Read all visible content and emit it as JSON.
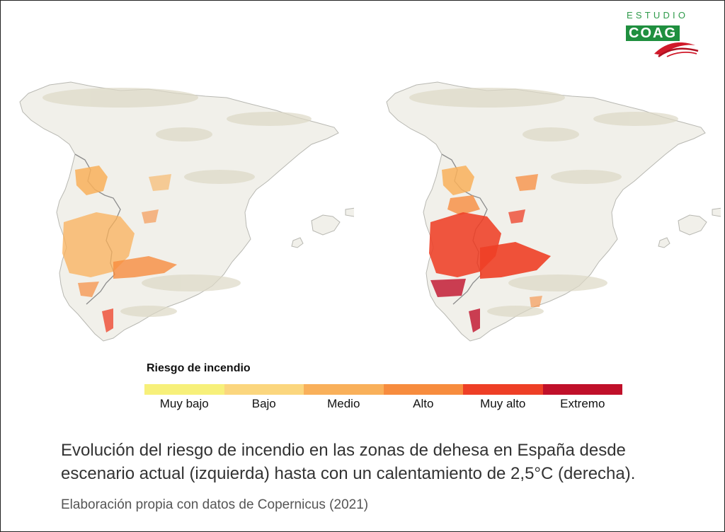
{
  "logo": {
    "top_text": "ESTUDIO",
    "main_text": "COAG"
  },
  "maps": [
    {
      "side": "izquierda",
      "scenario": "escenario actual"
    },
    {
      "side": "derecha",
      "scenario": "calentamiento de 2,5°C"
    }
  ],
  "legend": {
    "title": "Riesgo de incendio",
    "classes": [
      {
        "label": "Muy bajo",
        "color": "#f7f07a"
      },
      {
        "label": "Bajo",
        "color": "#fbd67e"
      },
      {
        "label": "Medio",
        "color": "#f9b05a"
      },
      {
        "label": "Alto",
        "color": "#f78c3e"
      },
      {
        "label": "Muy alto",
        "color": "#ee3f26"
      },
      {
        "label": "Extremo",
        "color": "#c0102a"
      }
    ]
  },
  "caption": {
    "line1": "Evolución del riesgo de incendio en las zonas de dehesa en España desde",
    "line2": "escenario actual (izquierda) hasta con un calentamiento de 2,5°C (derecha).",
    "source": "Elaboración propia con datos de Copernicus (2021)"
  },
  "colors": {
    "land": "#f1f0ea",
    "relief": "#ddd9c6",
    "border": "#9a9a9a"
  }
}
